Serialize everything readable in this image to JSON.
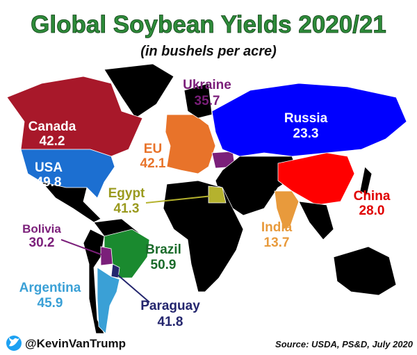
{
  "header": {
    "title": "Global Soybean Yields 2020/21",
    "subtitle": "(in bushels per acre)"
  },
  "regions": [
    {
      "name": "Canada",
      "value": "42.2"
    },
    {
      "name": "USA",
      "value": "49.8"
    },
    {
      "name": "EU",
      "value": "42.1"
    },
    {
      "name": "Ukraine",
      "value": "35.7"
    },
    {
      "name": "Russia",
      "value": "23.3"
    },
    {
      "name": "Egypt",
      "value": "41.3"
    },
    {
      "name": "China",
      "value": "28.0"
    },
    {
      "name": "India",
      "value": "13.7"
    },
    {
      "name": "Bolivia",
      "value": "30.2"
    },
    {
      "name": "Brazil",
      "value": "50.9"
    },
    {
      "name": "Argentina",
      "value": "45.9"
    },
    {
      "name": "Paraguay",
      "value": "41.8"
    }
  ],
  "footer": {
    "handle": "@KevinVanTrump",
    "source": "Source: USDA, PS&D, July 2020"
  }
}
